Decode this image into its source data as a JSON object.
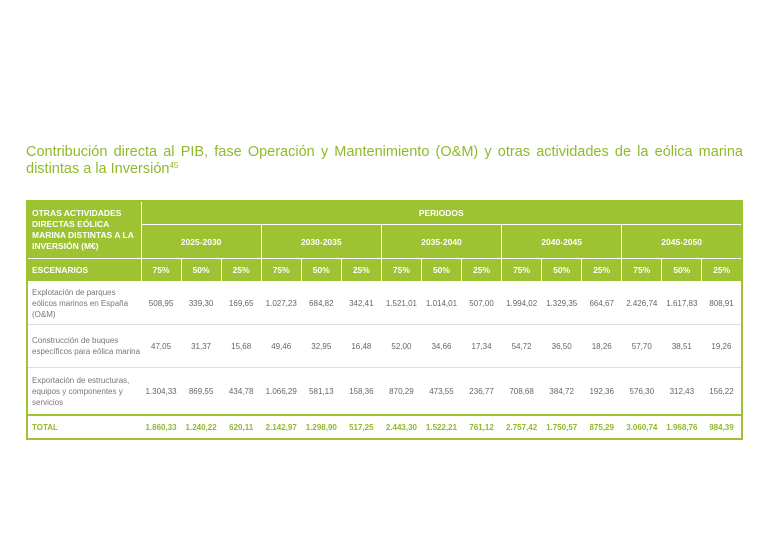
{
  "title": "Contribución directa al PIB, fase Operación y Mantenimiento (O&M) y otras actividades de la eólica marina distintas a la Inversión",
  "title_footnote": "45",
  "colors": {
    "accent": "#9dc232",
    "title": "#8fba2b"
  },
  "table": {
    "corner_header": "OTRAS ACTIVIDADES DIRECTAS EÓLICA MARINA DISTINTAS A LA INVERSIÓN (M€)",
    "periods_header": "PERIODOS",
    "periods": [
      "2025-2030",
      "2030-2035",
      "2035-2040",
      "2040-2045",
      "2045-2050"
    ],
    "scenarios_label": "ESCENARIOS",
    "scenarios": [
      "75%",
      "50%",
      "25%"
    ],
    "rows": [
      {
        "label": "Explotación de parques eólicos marinos en España (O&M)",
        "values": [
          "508,95",
          "339,30",
          "169,65",
          "1.027,23",
          "684,82",
          "342,41",
          "1.521,01",
          "1.014,01",
          "507,00",
          "1.994,02",
          "1.329,35",
          "664,67",
          "2.426,74",
          "1.617,83",
          "808,91"
        ]
      },
      {
        "label": "Construcción de buques específicos para eólica marina",
        "values": [
          "47,05",
          "31,37",
          "15,68",
          "49,46",
          "32,95",
          "16,48",
          "52,00",
          "34,66",
          "17,34",
          "54,72",
          "36,50",
          "18,26",
          "57,70",
          "38,51",
          "19,26"
        ]
      },
      {
        "label": "Exportación de estructuras, equipos y componentes y servicios",
        "values": [
          "1.304,33",
          "869,55",
          "434,78",
          "1.066,29",
          "581,13",
          "158,36",
          "870,29",
          "473,55",
          "236,77",
          "708,68",
          "384,72",
          "192,36",
          "576,30",
          "312,43",
          "156,22"
        ]
      }
    ],
    "total": {
      "label": "TOTAL",
      "values": [
        "1.860,33",
        "1.240,22",
        "620,11",
        "2.142,97",
        "1.298,90",
        "517,25",
        "2.443,30",
        "1.522,21",
        "761,12",
        "2.757,42",
        "1.750,57",
        "875,29",
        "3.060,74",
        "1.968,76",
        "984,39"
      ]
    }
  }
}
